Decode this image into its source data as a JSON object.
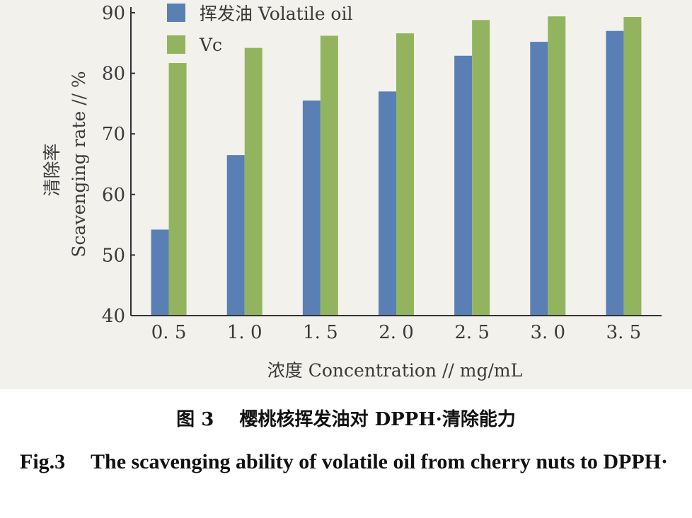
{
  "chart_data": {
    "type": "bar",
    "categories": [
      "0. 5",
      "1. 0",
      "1. 5",
      "2. 0",
      "2. 5",
      "3. 0",
      "3. 5"
    ],
    "series": [
      {
        "name": "挥发油 Volatile oil",
        "values": [
          54.2,
          66.5,
          75.5,
          77.0,
          82.9,
          85.2,
          87.0
        ],
        "color": "#5a7fb5"
      },
      {
        "name": "Vc",
        "values": [
          81.7,
          84.2,
          86.2,
          86.6,
          88.8,
          89.4,
          89.3
        ],
        "color": "#92b45f"
      }
    ],
    "ylim": [
      40,
      90
    ],
    "yticks": [
      "40",
      "50",
      "60",
      "70",
      "80",
      "90"
    ],
    "ylabel_cn": "清除率",
    "ylabel_en": "Scavenging rate // %",
    "xlabel": "浓度 Concentration // mg/mL",
    "legend_position": "top-left",
    "grid": false
  },
  "caption": {
    "cn_num": "图 3",
    "cn_text": "樱桃核挥发油对 DPPH·清除能力",
    "en_num": "Fig.3",
    "en_text": "The scavenging ability of volatile oil from cherry nuts to DPPH·"
  }
}
